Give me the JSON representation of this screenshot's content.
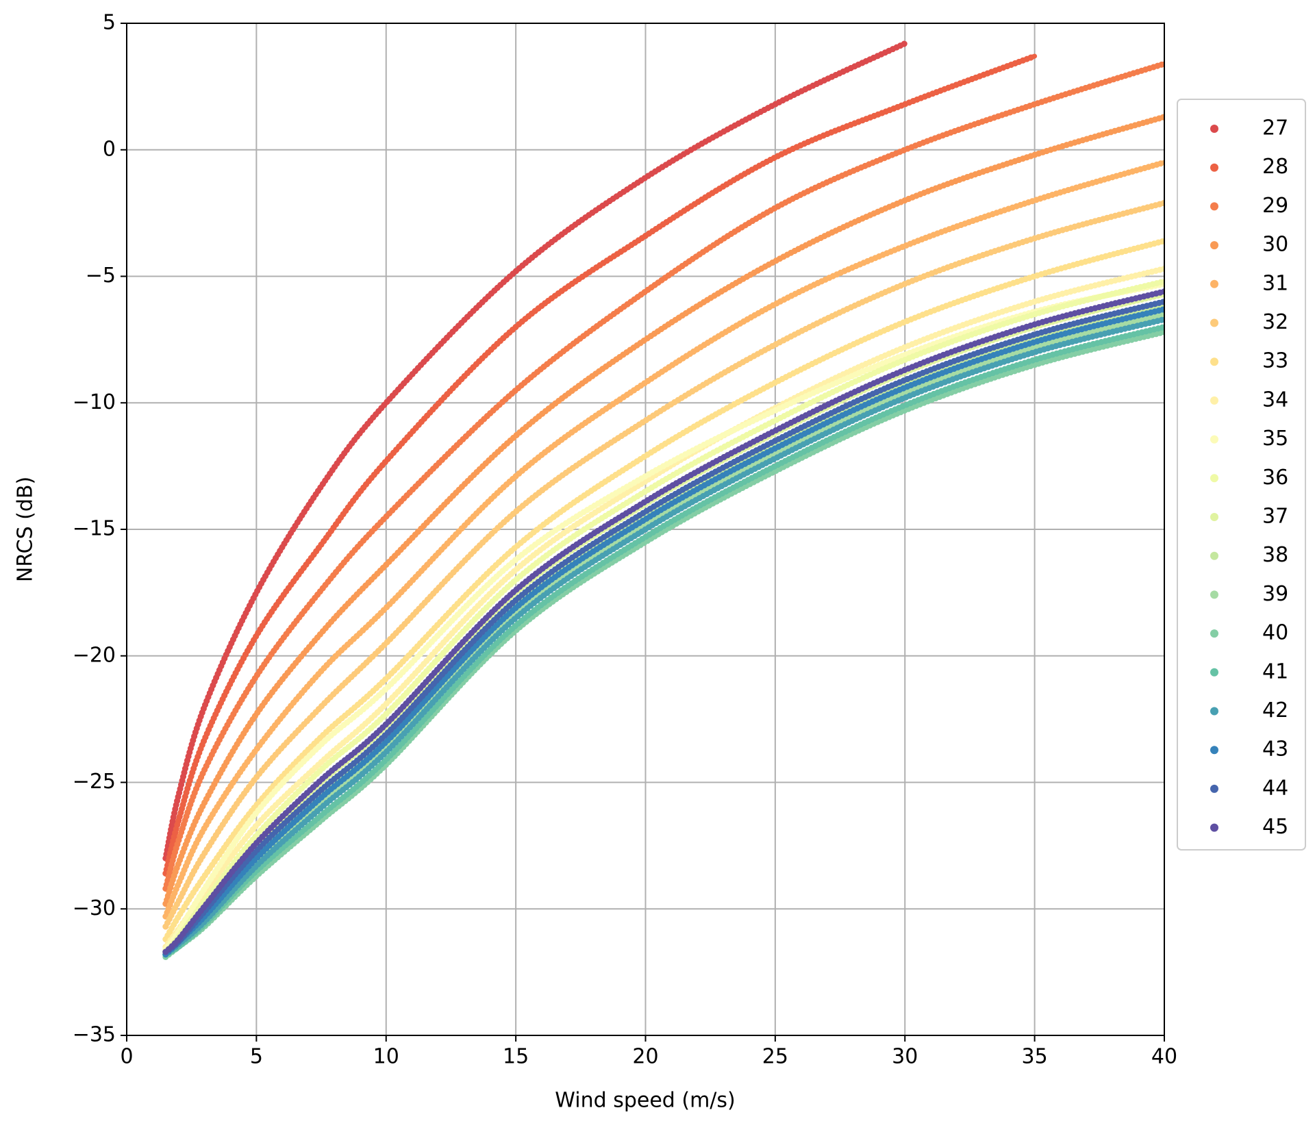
{
  "chart_data": {
    "type": "scatter",
    "xlabel": "Wind speed (m/s)",
    "ylabel": "NRCS (dB)",
    "x": [
      1.5,
      2,
      3,
      5,
      7.5,
      10,
      15,
      20,
      25,
      30,
      35,
      40
    ],
    "xlim": [
      0,
      40
    ],
    "xticks": [
      0,
      5,
      10,
      15,
      20,
      25,
      30,
      35,
      40
    ],
    "ylim": [
      -35,
      5
    ],
    "yticks": [
      {
        "value": -35,
        "label": "−35"
      },
      {
        "value": -30,
        "label": "−30"
      },
      {
        "value": -25,
        "label": "−25"
      },
      {
        "value": -20,
        "label": "−20"
      },
      {
        "value": -15,
        "label": "−15"
      },
      {
        "value": -10,
        "label": "−10"
      },
      {
        "value": -5,
        "label": "−5"
      },
      0,
      5
    ],
    "grid": true,
    "legend": "outside right",
    "series": [
      {
        "name": "27",
        "color": "#db4a4c",
        "values": [
          -28,
          -25.5,
          -22,
          -17.5,
          -13.3,
          -10,
          -4.8,
          -1.1,
          1.8,
          4.2,
          null,
          null
        ]
      },
      {
        "name": "28",
        "color": "#ec6144",
        "values": [
          -28.6,
          -26.5,
          -23.3,
          -19.2,
          -15.6,
          -12.3,
          -7,
          -3.4,
          -0.3,
          1.8,
          3.7,
          null
        ]
      },
      {
        "name": "29",
        "color": "#f47d4b",
        "values": [
          -29.2,
          -27.3,
          -24.5,
          -20.8,
          -17.4,
          -14.5,
          -9.5,
          -5.6,
          -2.3,
          0,
          1.8,
          3.4
        ]
      },
      {
        "name": "30",
        "color": "#f99a55",
        "values": [
          -29.8,
          -28.2,
          -25.8,
          -22.3,
          -19.1,
          -16.4,
          -11.3,
          -7.5,
          -4.4,
          -2.0,
          -0.2,
          1.3
        ]
      },
      {
        "name": "31",
        "color": "#fdb366",
        "values": [
          -30.3,
          -29.0,
          -26.8,
          -23.7,
          -20.6,
          -18.1,
          -12.9,
          -9.2,
          -6.1,
          -3.8,
          -2.0,
          -0.5
        ]
      },
      {
        "name": "32",
        "color": "#fdca79",
        "values": [
          -30.7,
          -29.7,
          -27.8,
          -24.8,
          -22.0,
          -19.5,
          -14.3,
          -10.7,
          -7.7,
          -5.3,
          -3.5,
          -2.1
        ]
      },
      {
        "name": "33",
        "color": "#fee08b",
        "values": [
          -31.2,
          -30.3,
          -28.7,
          -25.9,
          -23.2,
          -20.9,
          -15.7,
          -12.1,
          -9.2,
          -6.8,
          -5.0,
          -3.6
        ]
      },
      {
        "name": "34",
        "color": "#fff0a8",
        "values": [
          -31.5,
          -30.8,
          -29.4,
          -26.7,
          -24.2,
          -21.9,
          -16.6,
          -13.1,
          -10.2,
          -7.8,
          -6.0,
          -4.7
        ]
      },
      {
        "name": "35",
        "color": "#fcfbb8",
        "values": [
          -31.6,
          -30.9,
          -29.2,
          -26.2,
          -23.5,
          -21.3,
          -16.2,
          -12.9,
          -10.3,
          -8.1,
          -6.4,
          -5.3
        ]
      },
      {
        "name": "36",
        "color": "#effaa6",
        "values": [
          -31.7,
          -31.1,
          -29.7,
          -27.1,
          -24.5,
          -22.3,
          -17.0,
          -13.5,
          -10.7,
          -8.3,
          -6.5,
          -5.2
        ]
      },
      {
        "name": "37",
        "color": "#e0f3a0",
        "values": [
          -31.7,
          -31.2,
          -30.0,
          -27.5,
          -25.0,
          -22.8,
          -17.5,
          -14.0,
          -11.2,
          -8.8,
          -7.0,
          -5.7
        ]
      },
      {
        "name": "38",
        "color": "#c4e79e",
        "values": [
          -31.8,
          -31.3,
          -30.2,
          -27.8,
          -25.4,
          -23.2,
          -17.9,
          -14.4,
          -11.6,
          -9.2,
          -7.4,
          -6.1
        ]
      },
      {
        "name": "39",
        "color": "#a6dba4",
        "values": [
          -31.8,
          -31.4,
          -30.4,
          -28.1,
          -25.8,
          -23.6,
          -18.3,
          -14.8,
          -12.0,
          -9.6,
          -7.8,
          -6.5
        ]
      },
      {
        "name": "40",
        "color": "#84cea5",
        "values": [
          -31.9,
          -31.5,
          -30.7,
          -28.7,
          -26.5,
          -24.3,
          -19.0,
          -15.5,
          -12.7,
          -10.3,
          -8.5,
          -7.2
        ]
      },
      {
        "name": "41",
        "color": "#65c2a5",
        "values": [
          -31.8,
          -31.5,
          -30.6,
          -28.5,
          -26.3,
          -24.1,
          -18.8,
          -15.3,
          -12.5,
          -10.1,
          -8.3,
          -7.0
        ]
      },
      {
        "name": "42",
        "color": "#48a0b2",
        "values": [
          -31.8,
          -31.4,
          -30.5,
          -28.3,
          -26.0,
          -23.8,
          -18.5,
          -15.0,
          -12.2,
          -9.8,
          -8.0,
          -6.7
        ]
      },
      {
        "name": "43",
        "color": "#3582ba",
        "values": [
          -31.8,
          -31.3,
          -30.3,
          -28.0,
          -25.6,
          -23.4,
          -18.1,
          -14.6,
          -11.8,
          -9.4,
          -7.6,
          -6.3
        ]
      },
      {
        "name": "44",
        "color": "#4565ad",
        "values": [
          -31.7,
          -31.3,
          -30.1,
          -27.7,
          -25.3,
          -23.1,
          -17.8,
          -14.3,
          -11.5,
          -9.1,
          -7.3,
          -6.0
        ]
      },
      {
        "name": "45",
        "color": "#5e4fa2",
        "values": [
          -31.7,
          -31.2,
          -29.9,
          -27.4,
          -24.9,
          -22.7,
          -17.4,
          -13.9,
          -11.1,
          -8.7,
          -6.9,
          -5.6
        ]
      }
    ]
  }
}
